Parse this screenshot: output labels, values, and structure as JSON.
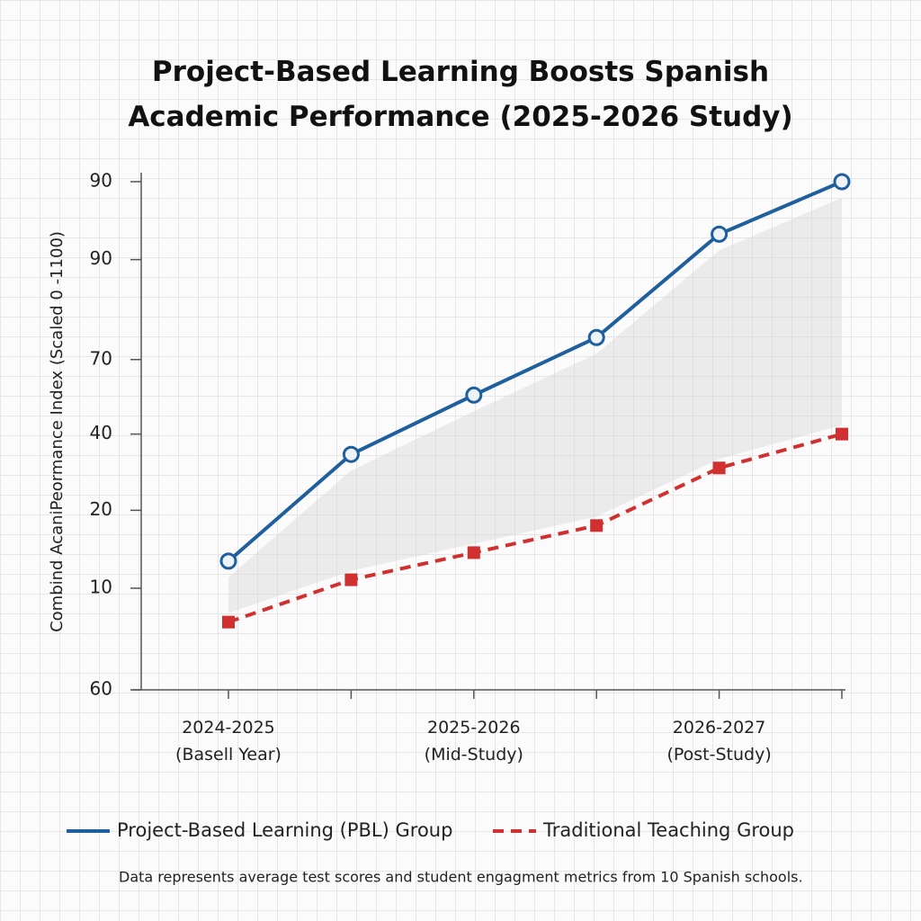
{
  "chart_data": {
    "type": "line",
    "title": "Project-Based Learning Boosts Spanish Academic Performance (2025-2026 Study)",
    "y_label": "Combind AcaniPeormance Index (Scaled 0 -1100)",
    "categories": [
      "2024-2025\n(Basell Year)",
      null,
      "2025-2026\n(Mid-Study)",
      null,
      "2026-2027\n(Post-Study)",
      null
    ],
    "series": [
      {
        "name": "Project-Based Learning (PBL) Group",
        "color": "#1f5f9e",
        "dash": false,
        "marker": "circle",
        "values": [
          67.6,
          73.9,
          77.4,
          80.8,
          86.9,
          90
        ]
      },
      {
        "name": "Traditional Teaching Group",
        "color": "#d0302f",
        "dash": true,
        "marker": "square",
        "values": [
          64.0,
          66.5,
          68.1,
          69.7,
          73.1,
          75.1
        ]
      }
    ],
    "ylim": [
      60,
      90
    ],
    "yticks": [
      60,
      {
        "value": 66.0,
        "label": "10"
      },
      {
        "value": 70.6,
        "label": "20"
      },
      {
        "value": 75.1,
        "label": "40"
      },
      {
        "value": 79.5,
        "label": "70"
      },
      {
        "value": 85.4,
        "label": "90"
      },
      90
    ],
    "footnote": "Data represents average test scores and student engagment metrics from 10 Spanish schools."
  }
}
